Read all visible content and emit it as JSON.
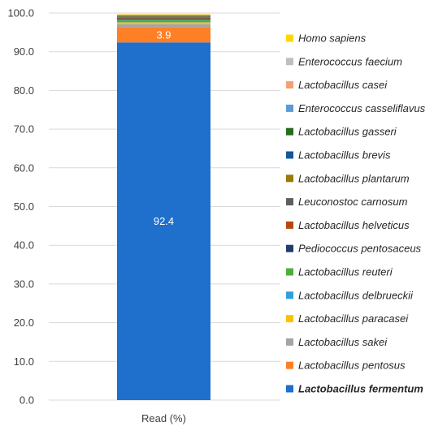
{
  "chart_data": {
    "type": "bar",
    "stacked": true,
    "categories": [
      "Read (%)"
    ],
    "ylim": [
      0,
      100
    ],
    "yticks": [
      "0.0",
      "10.0",
      "20.0",
      "30.0",
      "40.0",
      "50.0",
      "60.0",
      "70.0",
      "80.0",
      "90.0",
      "100.0"
    ],
    "grid": true,
    "legend_position": "right",
    "series": [
      {
        "name": "Lactobacillus fermentum",
        "values": [
          92.4
        ],
        "color": "#1f6fcc",
        "label": "92.4",
        "bold": true
      },
      {
        "name": "Lactobacillus pentosus",
        "values": [
          3.9
        ],
        "color": "#ff7f27",
        "label": "3.9"
      },
      {
        "name": "Lactobacillus sakei",
        "values": [
          0.8
        ],
        "color": "#a5a5a5"
      },
      {
        "name": "Lactobacillus paracasei",
        "values": [
          0.5
        ],
        "color": "#ffc000"
      },
      {
        "name": "Lactobacillus delbrueckii",
        "values": [
          0.4
        ],
        "color": "#2e9fd8"
      },
      {
        "name": "Lactobacillus reuteri",
        "values": [
          0.35
        ],
        "color": "#4caf3a"
      },
      {
        "name": "Pediococcus pentosaceus",
        "values": [
          0.25
        ],
        "color": "#1f3e6e"
      },
      {
        "name": "Lactobacillus helveticus",
        "values": [
          0.2
        ],
        "color": "#b8470e"
      },
      {
        "name": "Leuconostoc carnosum",
        "values": [
          0.15
        ],
        "color": "#5f5f5f"
      },
      {
        "name": "Lactobacillus plantarum",
        "values": [
          0.15
        ],
        "color": "#9c7a00"
      },
      {
        "name": "Lactobacillus brevis",
        "values": [
          0.12
        ],
        "color": "#14579a"
      },
      {
        "name": "Lactobacillus gasseri",
        "values": [
          0.12
        ],
        "color": "#266b1e"
      },
      {
        "name": "Enterococcus casseliflavus",
        "values": [
          0.1
        ],
        "color": "#5b9bd5"
      },
      {
        "name": "Lactobacillus casei",
        "values": [
          0.1
        ],
        "color": "#f4a070"
      },
      {
        "name": "Enterococcus faecium",
        "values": [
          0.08
        ],
        "color": "#bfbfbf"
      },
      {
        "name": "Homo sapiens",
        "values": [
          0.08
        ],
        "color": "#ffd700"
      }
    ]
  }
}
